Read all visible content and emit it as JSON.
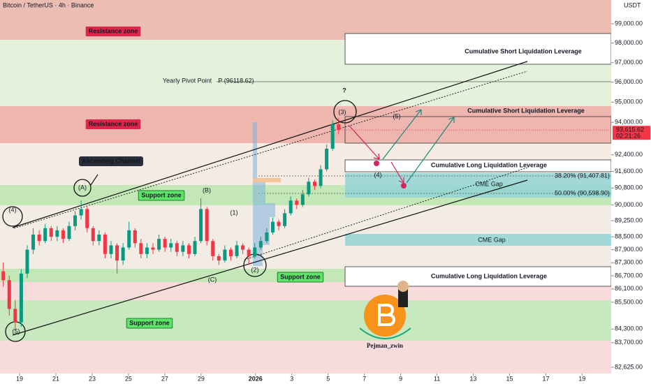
{
  "chart_data": {
    "type": "candlestick",
    "title": "Bitcoin / TetherUS · 4h · Binance",
    "currency": "USDT",
    "log_scale": true,
    "ylim": [
      82350,
      100250
    ],
    "yticks": [
      {
        "value": 99000,
        "label": "99,000.00"
      },
      {
        "value": 98000,
        "label": "98,000.00"
      },
      {
        "value": 97000,
        "label": "97,000.00"
      },
      {
        "value": 96000,
        "label": "96,000.00"
      },
      {
        "value": 95000,
        "label": "95,000.00"
      },
      {
        "value": 94000,
        "label": "94,000.00"
      },
      {
        "value": 92400,
        "label": "92,400.00"
      },
      {
        "value": 91600,
        "label": "91,600.00"
      },
      {
        "value": 90800,
        "label": "90,800.00"
      },
      {
        "value": 90000,
        "label": "90,000.00"
      },
      {
        "value": 89250,
        "label": "89,250.00"
      },
      {
        "value": 88500,
        "label": "88,500.00"
      },
      {
        "value": 87900,
        "label": "87,900.00"
      },
      {
        "value": 87300,
        "label": "87,300.00"
      },
      {
        "value": 86700,
        "label": "86,700.00"
      },
      {
        "value": 86100,
        "label": "86,100.00"
      },
      {
        "value": 85500,
        "label": "85,500.00"
      },
      {
        "value": 84300,
        "label": "84,300.00"
      },
      {
        "value": 83700,
        "label": "83,700.00"
      },
      {
        "value": 82625,
        "label": "82,625.00"
      }
    ],
    "xlim": [
      -1.08,
      32.6
    ],
    "xticks": [
      {
        "value": 0,
        "label": "19"
      },
      {
        "value": 2,
        "label": "21"
      },
      {
        "value": 4,
        "label": "23"
      },
      {
        "value": 6,
        "label": "25"
      },
      {
        "value": 8,
        "label": "27"
      },
      {
        "value": 10,
        "label": "29"
      },
      {
        "value": 13,
        "label": "2026"
      },
      {
        "value": 15,
        "label": "3"
      },
      {
        "value": 17,
        "label": "5"
      },
      {
        "value": 19,
        "label": "7"
      },
      {
        "value": 21,
        "label": "9"
      },
      {
        "value": 23,
        "label": "11"
      },
      {
        "value": 25,
        "label": "13"
      },
      {
        "value": 27,
        "label": "15"
      },
      {
        "value": 29,
        "label": "17"
      },
      {
        "value": 31,
        "label": "19"
      }
    ],
    "up_color": "#089981",
    "down_color": "#f23645",
    "x": [
      -0.9,
      -0.57,
      -0.24,
      0.09,
      0.42,
      0.75,
      1.08,
      1.41,
      1.74,
      2.07,
      2.4,
      2.73,
      3.06,
      3.39,
      3.72,
      4.05,
      4.38,
      4.71,
      5.04,
      5.37,
      5.7,
      6.03,
      6.36,
      6.69,
      7.02,
      7.35,
      7.68,
      8.01,
      8.34,
      8.67,
      9,
      9.33,
      9.66,
      9.99,
      10.32,
      10.65,
      10.98,
      11.31,
      11.64,
      11.97,
      12.3,
      12.63,
      12.96,
      13.29,
      13.62,
      13.95,
      14.28,
      14.61,
      14.94,
      15.27,
      15.6,
      15.93,
      16.26,
      16.59,
      16.92,
      17.25,
      17.58
    ],
    "open": [
      86900,
      86500,
      85200,
      84600,
      86800,
      87900,
      88600,
      88300,
      88900,
      88500,
      88800,
      88400,
      89000,
      89500,
      89800,
      88900,
      88300,
      88600,
      87700,
      88100,
      87400,
      88000,
      88800,
      88200,
      87700,
      88000,
      87900,
      88400,
      88000,
      88200,
      87800,
      88100,
      87700,
      88300,
      89800,
      88300,
      87600,
      87400,
      87900,
      87600,
      88100,
      87900,
      87600,
      88000,
      88300,
      88700,
      89200,
      89000,
      89600,
      90200,
      90000,
      90500,
      91100,
      90900,
      91700,
      92700,
      93900
    ],
    "high": [
      87300,
      86700,
      85600,
      87000,
      88100,
      88900,
      88800,
      89100,
      89000,
      89000,
      88900,
      89200,
      89700,
      90200,
      89900,
      89000,
      88800,
      88700,
      88300,
      88200,
      88200,
      89200,
      88900,
      88400,
      88200,
      88200,
      88600,
      88500,
      88400,
      88300,
      88300,
      88200,
      88500,
      90300,
      89900,
      88400,
      87700,
      88100,
      88000,
      88300,
      88200,
      88000,
      88200,
      88500,
      88900,
      89400,
      89300,
      89800,
      90400,
      90300,
      90700,
      91300,
      91200,
      91900,
      92900,
      94100,
      94200
    ],
    "low": [
      86200,
      84900,
      84250,
      84400,
      86600,
      87700,
      88100,
      88200,
      88300,
      88300,
      88200,
      88300,
      88800,
      89300,
      88700,
      88100,
      88100,
      87500,
      87500,
      86800,
      87200,
      87900,
      88000,
      87500,
      87500,
      87700,
      87800,
      87800,
      87800,
      87600,
      87600,
      87500,
      87600,
      88200,
      88100,
      87400,
      87200,
      87300,
      87400,
      87500,
      87700,
      87200,
      87500,
      87900,
      88200,
      88600,
      88800,
      88900,
      89500,
      89800,
      89900,
      90400,
      90700,
      90800,
      91600,
      92600,
      93400
    ],
    "close": [
      86500,
      85200,
      84600,
      86800,
      87900,
      88600,
      88300,
      88900,
      88500,
      88800,
      88400,
      89000,
      89500,
      89800,
      88900,
      88300,
      88600,
      87700,
      88100,
      87400,
      88000,
      88800,
      88200,
      87700,
      88000,
      87900,
      88400,
      88000,
      88200,
      87800,
      88100,
      87700,
      88300,
      89800,
      88300,
      87600,
      87400,
      87900,
      87600,
      88100,
      87900,
      87600,
      88000,
      88300,
      88700,
      89200,
      89000,
      89600,
      90200,
      90000,
      90500,
      91100,
      90900,
      91700,
      92700,
      93900,
      93615.62
    ],
    "price_tag": {
      "value": 93615.62,
      "label": "93,615.62"
    },
    "countdown": "02:21:26",
    "zones": [
      {
        "from": 98170,
        "to": 100250,
        "color": "#ebbdb3"
      },
      {
        "from": 94800,
        "to": 98170,
        "color": "#e4f2dc"
      },
      {
        "from": 92970,
        "to": 94800,
        "color": "#eeb6ae"
      },
      {
        "from": 90944,
        "to": 92970,
        "color": "#f5ebe2"
      },
      {
        "from": 89980,
        "to": 90944,
        "color": "#c3e7b7"
      },
      {
        "from": 87020,
        "to": 89980,
        "color": "#f3ece4"
      },
      {
        "from": 86414,
        "to": 87020,
        "color": "#c3e7b7"
      },
      {
        "from": 85590,
        "to": 86414,
        "color": "#f8dcdc"
      },
      {
        "from": 83786,
        "to": 85590,
        "color": "#c8e8bf"
      },
      {
        "from": 82350,
        "to": 83786,
        "color": "#f8dcdc"
      }
    ],
    "annotations": [
      "Resistance zone",
      "Resistance zone",
      "Ascending Channel",
      "Support zone",
      "Support zone",
      "Support zone",
      "Yearly Pivot Point",
      "P (96118.62)",
      "Cumulative Short Liquidation Leverage",
      "Cumulative Short Liquidation Leverage",
      "Cumulative Long Liquidation Leverage",
      "Cumulative Long Liquidation Leverage",
      "CME Gap",
      "CME Gap",
      "38.20% (91,407.81)",
      "50.00% (90,598.90)",
      "Pejman_zwin",
      "?"
    ],
    "wave_labels": [
      "(4)",
      "(5)",
      "(A)",
      "(B)",
      "(1)",
      "(2)",
      "(3)",
      "(C)",
      "(4)",
      "(5)"
    ]
  }
}
